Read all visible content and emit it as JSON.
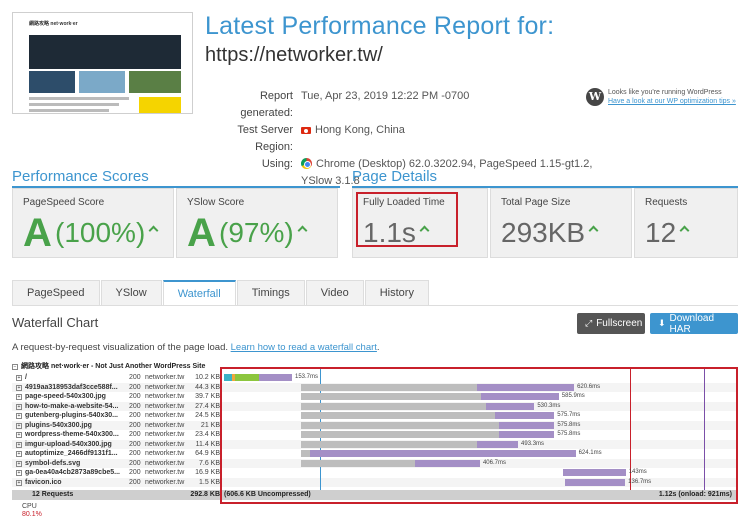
{
  "header": {
    "title": "Latest Performance Report for:",
    "url": "https://networker.tw/",
    "thumbnail_logo": "網路攻略 net·work·er"
  },
  "meta": {
    "report_generated_label": "Report generated:",
    "report_generated_value": "Tue, Apr 23, 2019 12:22 PM -0700",
    "region_label": "Test Server Region:",
    "region_value": "Hong Kong, China",
    "using_label": "Using:",
    "using_value_line1": "Chrome (Desktop) 62.0.3202.94, PageSpeed 1.15-gt1.2,",
    "using_value_line2": "YSlow 3.1.8"
  },
  "wordpress": {
    "line1": "Looks like you're running WordPress",
    "link": "Have a look at our WP optimization tips »"
  },
  "performance": {
    "title": "Performance Scores",
    "pagespeed_label": "PageSpeed Score",
    "pagespeed_grade": "A",
    "pagespeed_pct": "(100%)",
    "yslow_label": "YSlow Score",
    "yslow_grade": "A",
    "yslow_pct": "(97%)"
  },
  "details": {
    "title": "Page Details",
    "loaded_label": "Fully Loaded Time",
    "loaded_value": "1.1s",
    "size_label": "Total Page Size",
    "size_value": "293KB",
    "requests_label": "Requests",
    "requests_value": "12"
  },
  "tabs": [
    {
      "label": "PageSpeed"
    },
    {
      "label": "YSlow"
    },
    {
      "label": "Waterfall"
    },
    {
      "label": "Timings"
    },
    {
      "label": "Video"
    },
    {
      "label": "History"
    }
  ],
  "waterfall": {
    "title": "Waterfall Chart",
    "fullscreen_label": "Fullscreen",
    "download_label": "Download HAR",
    "desc_text": "A request-by-request visualization of the page load.",
    "desc_link": "Learn how to read a waterfall chart",
    "desc_end": ".",
    "site_title": "網路攻略 net·work·er - Not Just Another WordPress Site",
    "rows": [
      {
        "file": "/",
        "status": "200",
        "domain": "networker.tw",
        "size": "10.2 KB",
        "time": "153.7ms",
        "start": 0,
        "wait": 0,
        "recv": 153.7
      },
      {
        "file": "4919aa318953daf3cce588f...",
        "status": "200",
        "domain": "networker.tw",
        "size": "44.3 KB",
        "time": "620.6ms",
        "start": 175,
        "wait": 400,
        "recv": 220.6
      },
      {
        "file": "page-speed-540x300.jpg",
        "status": "200",
        "domain": "networker.tw",
        "size": "39.7 KB",
        "time": "585.9ms",
        "start": 175,
        "wait": 410,
        "recv": 175.9
      },
      {
        "file": "how-to-make-a-website-54...",
        "status": "200",
        "domain": "networker.tw",
        "size": "27.4 KB",
        "time": "530.3ms",
        "start": 175,
        "wait": 420,
        "recv": 110.3
      },
      {
        "file": "gutenberg-plugins-540x30...",
        "status": "200",
        "domain": "networker.tw",
        "size": "24.5 KB",
        "time": "575.7ms",
        "start": 175,
        "wait": 440,
        "recv": 135.7
      },
      {
        "file": "plugins-540x300.jpg",
        "status": "200",
        "domain": "networker.tw",
        "size": "21 KB",
        "time": "575.8ms",
        "start": 175,
        "wait": 450,
        "recv": 125.8
      },
      {
        "file": "wordpress-theme-540x300...",
        "status": "200",
        "domain": "networker.tw",
        "size": "23.4 KB",
        "time": "575.8ms",
        "start": 175,
        "wait": 450,
        "recv": 125.8
      },
      {
        "file": "imgur-upload-540x300.jpg",
        "status": "200",
        "domain": "networker.tw",
        "size": "11.4 KB",
        "time": "493.3ms",
        "start": 175,
        "wait": 400,
        "recv": 93.3
      },
      {
        "file": "autoptimize_2466df9131f1...",
        "status": "200",
        "domain": "networker.tw",
        "size": "64.9 KB",
        "time": "624.1ms",
        "start": 175,
        "wait": 20,
        "recv": 604.1
      },
      {
        "file": "symbol-defs.svg",
        "status": "200",
        "domain": "networker.tw",
        "size": "7.6 KB",
        "time": "406.7ms",
        "start": 175,
        "wait": 260,
        "recv": 146.7
      },
      {
        "file": "ga-0ea40a4cb2873a89cbe5...",
        "status": "200",
        "domain": "networker.tw",
        "size": "16.9 KB",
        "time": "143ms",
        "start": 770,
        "wait": 0,
        "recv": 143
      },
      {
        "file": "favicon.ico",
        "status": "200",
        "domain": "networker.tw",
        "size": "1.5 KB",
        "time": "136.7ms",
        "start": 775,
        "wait": 0,
        "recv": 136.7
      }
    ],
    "footer_requests": "12 Requests",
    "footer_size": "292.8 KB",
    "footer_uncompressed": "(606.6 KB Uncompressed)",
    "footer_time": "1.12s (onload: 921ms)",
    "cpu_label": "CPU",
    "cpu_value": "80.1%"
  },
  "colors": {
    "accent": "#3d95cf",
    "grade": "#49a24a",
    "highlight": "#c8202b",
    "bar_wait": "#bdbdbd",
    "bar_receive": "#a48fc6"
  }
}
